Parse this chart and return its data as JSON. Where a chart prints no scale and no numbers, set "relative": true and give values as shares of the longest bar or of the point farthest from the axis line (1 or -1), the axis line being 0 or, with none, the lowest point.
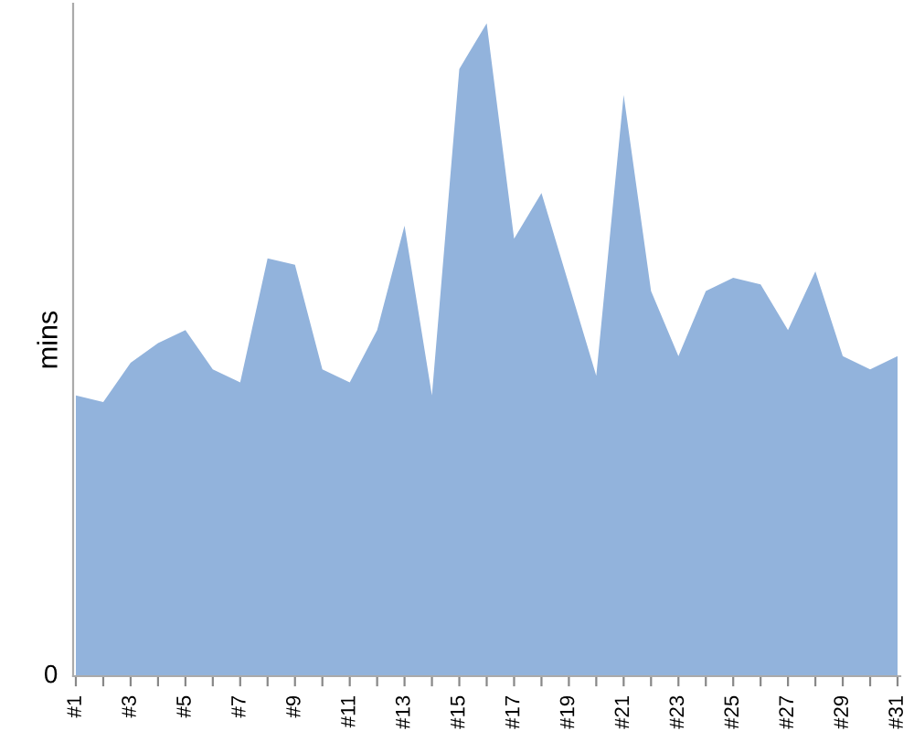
{
  "chart_data": {
    "type": "area",
    "ylabel": "mins",
    "relative": true,
    "annotations": [
      "0"
    ],
    "grid": false,
    "categories": [
      "#1",
      null,
      "#3",
      null,
      "#5",
      null,
      "#7",
      null,
      "#9",
      null,
      "#11",
      null,
      "#13",
      null,
      "#15",
      null,
      "#17",
      null,
      "#19",
      null,
      "#21",
      null,
      "#23",
      null,
      "#25",
      null,
      "#27",
      null,
      "#29",
      null,
      "#31"
    ],
    "series": [
      {
        "color": "#92b3dc",
        "values": [
          0.43,
          0.42,
          0.48,
          0.51,
          0.53,
          0.47,
          0.45,
          0.64,
          0.63,
          0.47,
          0.45,
          0.53,
          0.69,
          0.43,
          0.93,
          1,
          0.67,
          0.74,
          0.6,
          0.46,
          0.89,
          0.59,
          0.49,
          0.59,
          0.61,
          0.6,
          0.53,
          0.62,
          0.49,
          0.47,
          0.49
        ]
      }
    ]
  }
}
